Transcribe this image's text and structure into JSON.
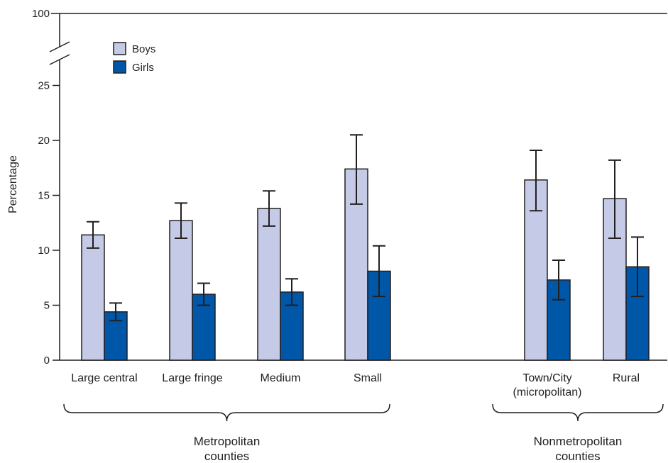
{
  "chart_data": {
    "type": "bar",
    "title": "",
    "xlabel": "",
    "ylabel": "Percentage",
    "ylim": [
      0,
      25
    ],
    "y_axis_break": {
      "top_label": "100"
    },
    "yticks": [
      "0",
      "5",
      "10",
      "15",
      "20",
      "25"
    ],
    "grid": false,
    "legend_position": "top-left",
    "categories": [
      "Large central",
      "Large fringe",
      "Medium",
      "Small",
      "Town/City\n(micropolitan)",
      "Rural"
    ],
    "groups": [
      {
        "label": "Metropolitan\ncounties",
        "categories": [
          "Large central",
          "Large fringe",
          "Medium",
          "Small"
        ]
      },
      {
        "label": "Nonmetropolitan\ncounties",
        "categories": [
          "Town/City\n(micropolitan)",
          "Rural"
        ]
      }
    ],
    "series": [
      {
        "name": "Boys",
        "color": "#c5cae6",
        "values": [
          11.4,
          12.7,
          13.8,
          17.4,
          16.4,
          14.7
        ],
        "ci_low": [
          10.2,
          11.1,
          12.2,
          14.2,
          13.6,
          11.1
        ],
        "ci_high": [
          12.6,
          14.3,
          15.4,
          20.5,
          19.1,
          18.2
        ]
      },
      {
        "name": "Girls",
        "color": "#0057a8",
        "values": [
          4.4,
          6.0,
          6.2,
          8.1,
          7.3,
          8.5
        ],
        "ci_low": [
          3.6,
          5.0,
          5.0,
          5.8,
          5.5,
          5.8
        ],
        "ci_high": [
          5.2,
          7.0,
          7.4,
          10.4,
          9.1,
          11.2
        ]
      }
    ]
  }
}
